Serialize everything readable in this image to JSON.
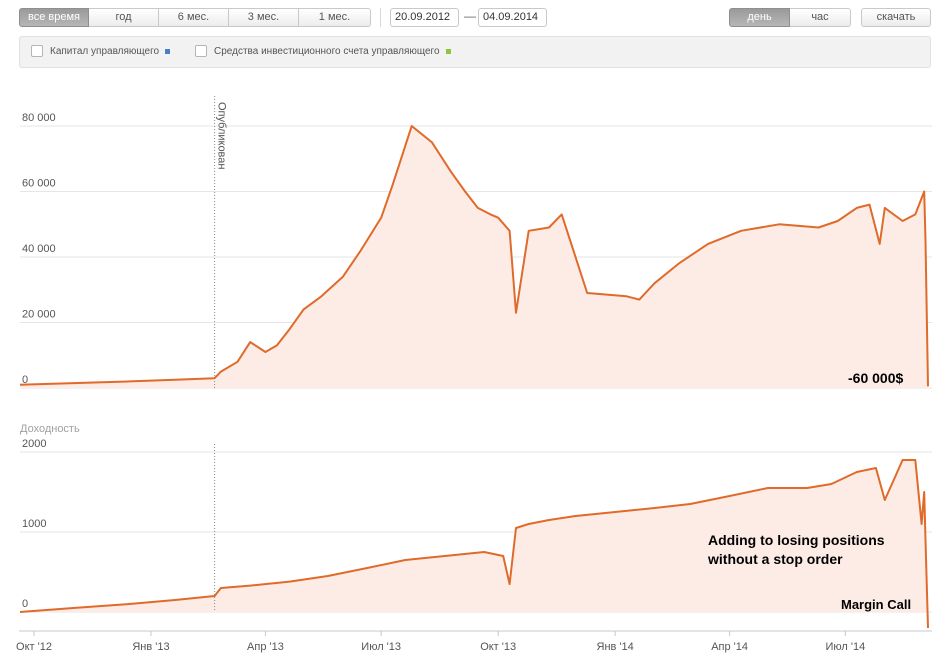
{
  "toolbar": {
    "periods": [
      "все время",
      "год",
      "6 мес.",
      "3 мес.",
      "1 мес."
    ],
    "active_period": 0,
    "date_from": "20.09.2012",
    "date_to": "04.09.2014",
    "intervals": [
      "день",
      "час"
    ],
    "active_interval": 0,
    "download_label": "скачать"
  },
  "legend": {
    "items": [
      {
        "label": "Капитал управляющего",
        "color": "#4a7fc1"
      },
      {
        "label": "Средства инвестиционного счета управляющего",
        "color": "#8cc63f"
      }
    ]
  },
  "colors": {
    "line": "#e06a2a",
    "fill": "#fdece6",
    "grid": "#e6e6e6"
  },
  "chart_data": [
    {
      "type": "area",
      "title": "",
      "y_ticks": [
        "0",
        "20 000",
        "40 000",
        "60 000",
        "80 000"
      ],
      "ylim": [
        0,
        80000
      ],
      "marker_label": "Опубликован",
      "annotations": [
        "-60 000$"
      ],
      "x": [
        "2012-09-20",
        "2012-11-01",
        "2012-12-15",
        "2013-01-20",
        "2013-02-20",
        "2013-02-25",
        "2013-03-10",
        "2013-03-20",
        "2013-04-01",
        "2013-04-10",
        "2013-04-20",
        "2013-05-01",
        "2013-05-15",
        "2013-06-01",
        "2013-06-15",
        "2013-07-01",
        "2013-07-10",
        "2013-07-25",
        "2013-08-10",
        "2013-08-25",
        "2013-09-05",
        "2013-09-15",
        "2013-09-25",
        "2013-10-01",
        "2013-10-10",
        "2013-10-15",
        "2013-10-25",
        "2013-11-10",
        "2013-11-20",
        "2013-12-10",
        "2014-01-10",
        "2014-01-20",
        "2014-02-01",
        "2014-02-20",
        "2014-03-15",
        "2014-04-10",
        "2014-05-10",
        "2014-06-10",
        "2014-06-25",
        "2014-07-10",
        "2014-07-20",
        "2014-07-28",
        "2014-08-01",
        "2014-08-15",
        "2014-08-25",
        "2014-09-01",
        "2014-09-02",
        "2014-09-04"
      ],
      "values": [
        1000,
        1500,
        2000,
        2500,
        3000,
        5000,
        8000,
        14000,
        11000,
        13000,
        18000,
        24000,
        28000,
        34000,
        42000,
        52000,
        62000,
        80000,
        75000,
        66000,
        60000,
        55000,
        53000,
        52000,
        48000,
        23000,
        48000,
        49000,
        53000,
        29000,
        28000,
        27000,
        32000,
        38000,
        44000,
        48000,
        50000,
        49000,
        51000,
        55000,
        56000,
        44000,
        55000,
        51000,
        53000,
        60000,
        45000,
        500
      ]
    },
    {
      "type": "area",
      "ylabel": "Доходность",
      "y_ticks": [
        "0",
        "1000",
        "2000"
      ],
      "ylim": [
        0,
        2000
      ],
      "marker_label": "",
      "annotations": [
        "Adding to losing positions",
        "without a stop order",
        "Margin Call"
      ],
      "x": [
        "2012-09-20",
        "2012-11-01",
        "2012-12-15",
        "2013-01-20",
        "2013-02-20",
        "2013-02-25",
        "2013-03-20",
        "2013-04-20",
        "2013-05-20",
        "2013-06-20",
        "2013-07-20",
        "2013-08-20",
        "2013-09-20",
        "2013-10-05",
        "2013-10-10",
        "2013-10-15",
        "2013-10-25",
        "2013-11-10",
        "2013-12-01",
        "2014-01-01",
        "2014-02-01",
        "2014-03-01",
        "2014-04-01",
        "2014-05-01",
        "2014-06-01",
        "2014-06-20",
        "2014-07-10",
        "2014-07-25",
        "2014-08-01",
        "2014-08-15",
        "2014-08-25",
        "2014-08-30",
        "2014-09-01",
        "2014-09-02",
        "2014-09-04"
      ],
      "values": [
        0,
        50,
        100,
        150,
        200,
        300,
        330,
        380,
        450,
        550,
        650,
        700,
        750,
        700,
        350,
        1050,
        1100,
        1150,
        1200,
        1250,
        1300,
        1350,
        1450,
        1550,
        1550,
        1600,
        1750,
        1800,
        1400,
        1900,
        1900,
        1100,
        1500,
        900,
        -200
      ]
    }
  ],
  "x_ticks": [
    {
      "label": "Окт '12",
      "date": "2012-10-01"
    },
    {
      "label": "Янв '13",
      "date": "2013-01-01"
    },
    {
      "label": "Апр '13",
      "date": "2013-04-01"
    },
    {
      "label": "Июл '13",
      "date": "2013-07-01"
    },
    {
      "label": "Окт '13",
      "date": "2013-10-01"
    },
    {
      "label": "Янв '14",
      "date": "2014-01-01"
    },
    {
      "label": "Апр '14",
      "date": "2014-04-01"
    },
    {
      "label": "Июл '14",
      "date": "2014-07-01"
    }
  ],
  "published_date": "2013-02-20"
}
